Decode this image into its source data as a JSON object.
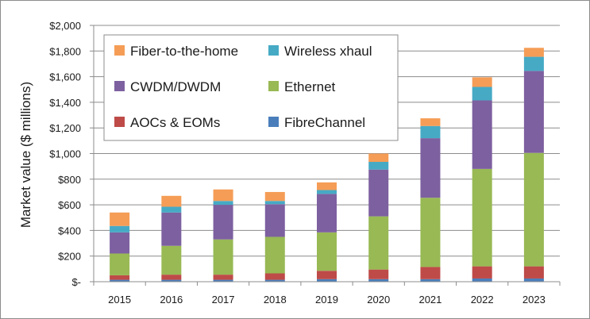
{
  "chart_data": {
    "type": "bar",
    "stacked": true,
    "title": "",
    "xlabel": "",
    "ylabel": "Market value ($ millions)",
    "ylim": [
      0,
      2000
    ],
    "yticks": [
      0,
      200,
      400,
      600,
      800,
      1000,
      1200,
      1400,
      1600,
      1800,
      2000
    ],
    "ytick_labels": [
      "$-",
      "$200",
      "$400",
      "$600",
      "$800",
      "$1,000",
      "$1,200",
      "$1,400",
      "$1,600",
      "$1,800",
      "$2,000"
    ],
    "grid": true,
    "legend_position": "top-left",
    "categories": [
      "2015",
      "2016",
      "2017",
      "2018",
      "2019",
      "2020",
      "2021",
      "2022",
      "2023"
    ],
    "series": [
      {
        "name": "FibreChannel",
        "color": "#4a7ebb",
        "values": [
          15,
          15,
          15,
          15,
          20,
          20,
          20,
          25,
          25
        ]
      },
      {
        "name": "AOCs & EOMs",
        "color": "#be4b48",
        "values": [
          35,
          40,
          40,
          50,
          65,
          75,
          95,
          95,
          95
        ]
      },
      {
        "name": "Ethernet",
        "color": "#98b954",
        "values": [
          170,
          225,
          275,
          285,
          300,
          415,
          540,
          760,
          885
        ]
      },
      {
        "name": "CWDM/DWDM",
        "color": "#7d60a0",
        "values": [
          165,
          260,
          270,
          255,
          300,
          365,
          465,
          535,
          640
        ]
      },
      {
        "name": "Wireless xhaul",
        "color": "#46aac5",
        "values": [
          50,
          45,
          30,
          25,
          30,
          60,
          95,
          105,
          110
        ]
      },
      {
        "name": "Fiber-to-the-home",
        "color": "#f59d56",
        "values": [
          105,
          85,
          90,
          70,
          60,
          65,
          60,
          75,
          70
        ]
      }
    ],
    "legend_order": [
      "Fiber-to-the-home",
      "Wireless xhaul",
      "CWDM/DWDM",
      "Ethernet",
      "AOCs & EOMs",
      "FibreChannel"
    ]
  }
}
